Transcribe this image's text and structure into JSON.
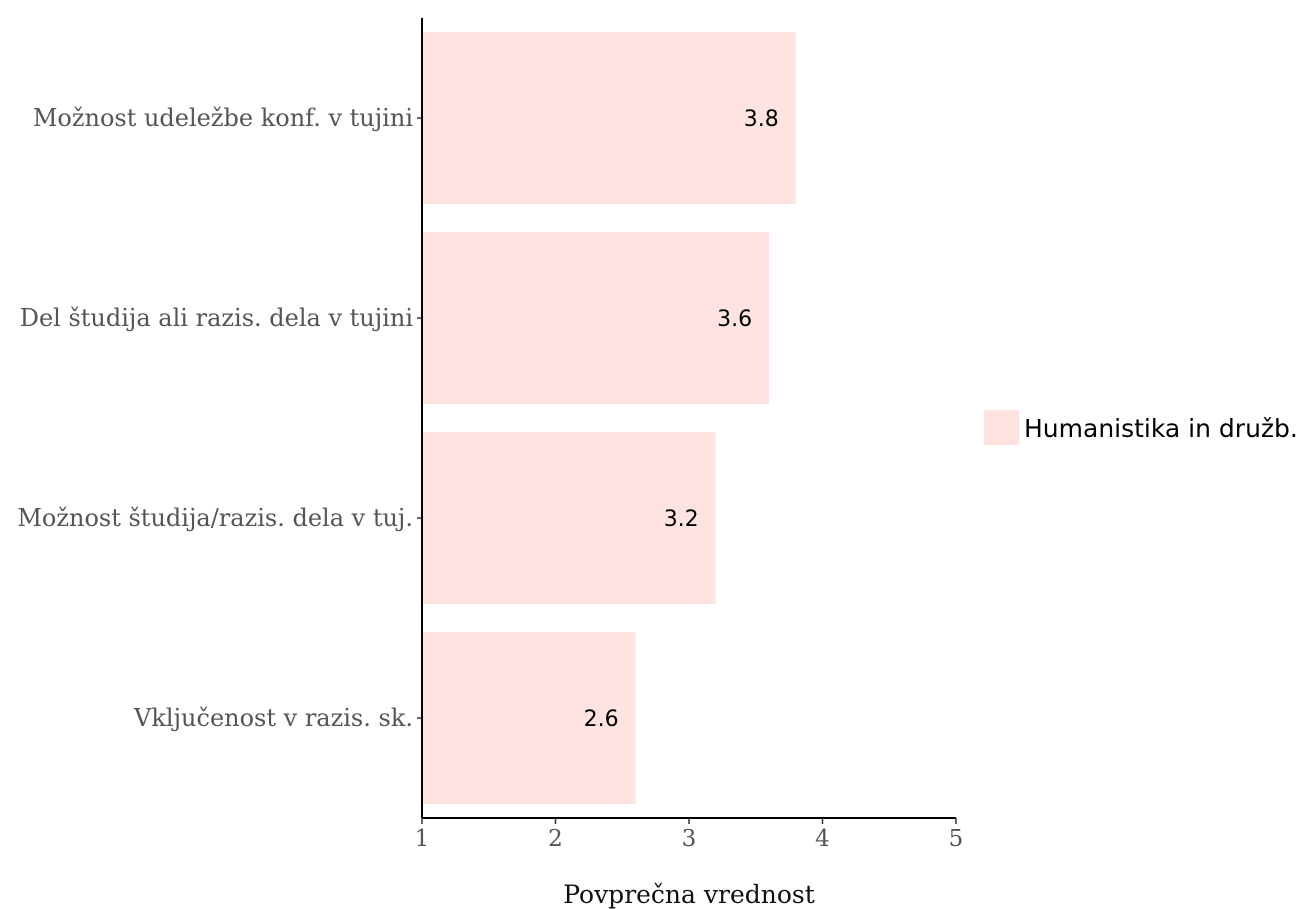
{
  "chart_data": {
    "type": "bar",
    "orientation": "horizontal",
    "categories": [
      "Možnost udeležbe konf. v tujini",
      "Del študija ali razis. dela v tujini",
      "Možnost študija/razis. dela v tuj.",
      "Vključenost v razis. sk."
    ],
    "series": [
      {
        "name": "Humanistika in družb.",
        "values": [
          3.8,
          3.6,
          3.2,
          2.6
        ],
        "data_labels": [
          "3.8",
          "3.6",
          "3.2",
          "2.6"
        ],
        "color": "#ffe3e0"
      }
    ],
    "xlabel": "Povprečna vrednost",
    "ylabel": "",
    "xlim": [
      1,
      5
    ],
    "x_ticks": [
      "1",
      "2",
      "3",
      "4",
      "5"
    ],
    "grid": false,
    "legend_position": "right"
  }
}
